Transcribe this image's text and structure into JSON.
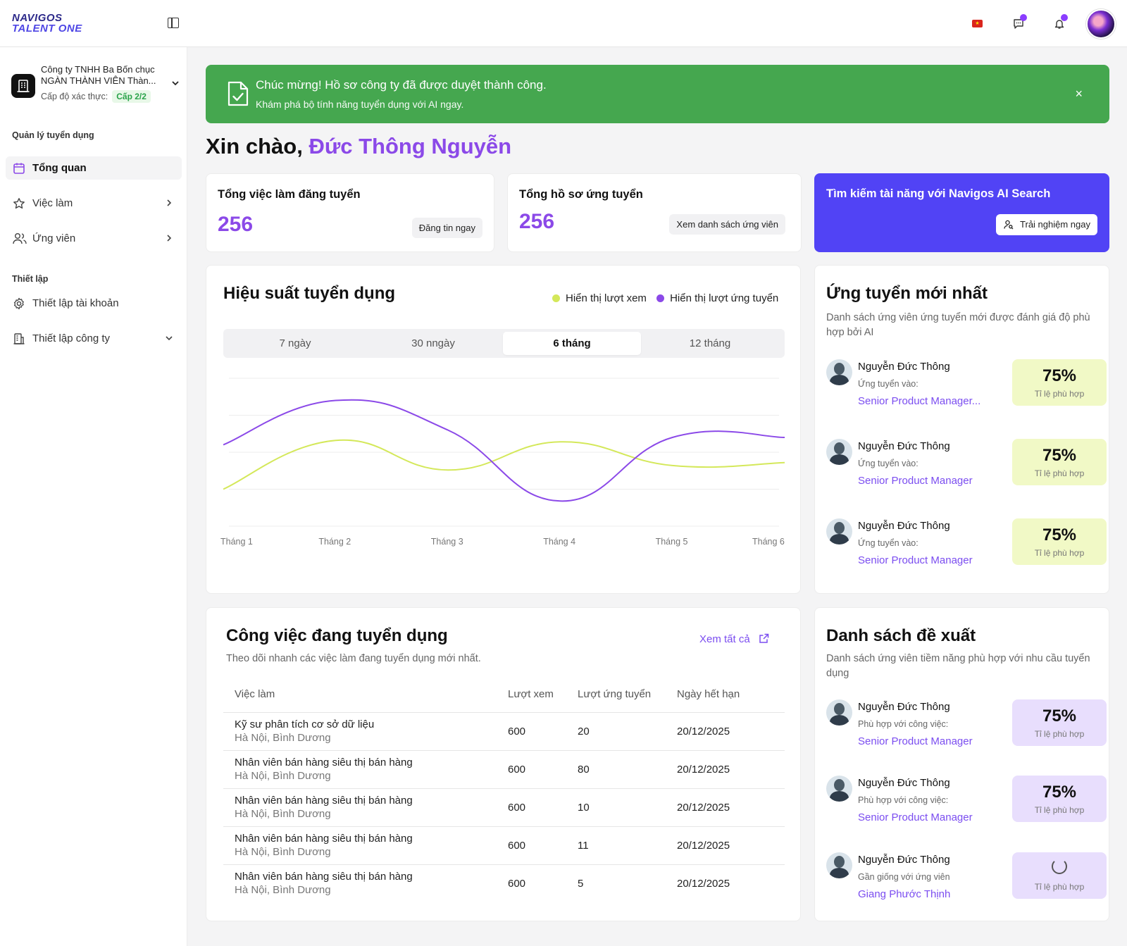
{
  "brand": {
    "line1": "NAVIGOS",
    "line2": "TALENT ONE"
  },
  "topbar": {
    "flag": "★",
    "messages_icon": "chat-icon",
    "notifications_icon": "bell-icon"
  },
  "company": {
    "name": "Công ty TNHH Ba Bốn chục NGÀN THÀNH VIÊN Thàn...",
    "level_label": "Cấp độ xác thực:",
    "level_value": "Cấp 2/2"
  },
  "sidebar": {
    "section1": "Quản lý tuyển dụng",
    "items": [
      {
        "label": "Tổng quan",
        "icon": "calendar-icon"
      },
      {
        "label": "Việc làm",
        "icon": "star-icon"
      },
      {
        "label": "Ứng viên",
        "icon": "users-icon"
      }
    ],
    "section2": "Thiết lập",
    "settings": [
      {
        "label": "Thiết lập tài khoản",
        "icon": "gear-icon"
      },
      {
        "label": "Thiết lập công ty",
        "icon": "building-icon"
      }
    ]
  },
  "alert": {
    "title": "Chúc mừng! Hồ sơ công ty đã được duyệt thành công.",
    "subtitle": "Khám phá bộ tính năng tuyển dụng với AI ngay.",
    "close": "×",
    "color": "#45a74f"
  },
  "greeting": {
    "prefix": "Xin chào,",
    "name": "Đức Thông Nguyễn"
  },
  "stats": {
    "jobs": {
      "title": "Tổng việc làm đăng tuyển",
      "value": "256",
      "button": "Đăng tin ngay"
    },
    "applications": {
      "title": "Tổng hồ sơ ứng tuyển",
      "value": "256",
      "button": "Xem danh sách ứng viên"
    }
  },
  "ai_search": {
    "title": "Tìm kiếm tài năng với Navigos AI Search",
    "button": "Trải nghiệm ngay",
    "color": "#5143f5"
  },
  "performance": {
    "title": "Hiệu suất tuyển dụng",
    "legend_views": "Hiển thị lượt xem",
    "legend_applies": "Hiển thị lượt ứng tuyển",
    "tabs": [
      "7 ngày",
      "30 nngày",
      "6 tháng",
      "12 tháng"
    ],
    "active_tab": "6 tháng"
  },
  "chart_data": {
    "type": "line",
    "categories": [
      "Tháng 1",
      "Tháng 2",
      "Tháng 3",
      "Tháng 4",
      "Tháng 5",
      "Tháng 6"
    ],
    "series": [
      {
        "name": "Hiển thị lượt xem",
        "color": "#d4e85a",
        "values": [
          25,
          58,
          38,
          57,
          41,
          43
        ]
      },
      {
        "name": "Hiển thị lượt ứng tuyển",
        "color": "#8b49e8",
        "values": [
          55,
          85,
          65,
          17,
          60,
          60
        ]
      }
    ],
    "ylim": [
      0,
      100
    ],
    "grid": true
  },
  "recent": {
    "title": "Ứng tuyển mới nhất",
    "subtitle": "Danh sách ứng viên ứng tuyển mới  được đánh giá độ phù hợp bởi AI",
    "items": [
      {
        "name": "Nguyễn Đức Thông",
        "label": "Ứng tuyển vào:",
        "job": "Senior Product Manager...",
        "score": "75%",
        "score_label": "Tỉ lệ phù hợp"
      },
      {
        "name": "Nguyễn Đức Thông",
        "label": "Ứng tuyển vào:",
        "job": "Senior Product Manager",
        "score": "75%",
        "score_label": "Tỉ lệ phù hợp"
      },
      {
        "name": "Nguyễn Đức Thông",
        "label": "Ứng tuyển vào:",
        "job": "Senior Product Manager",
        "score": "75%",
        "score_label": "Tỉ lệ phù hợp"
      }
    ]
  },
  "jobs": {
    "title": "Công việc đang tuyển dụng",
    "subtitle": "Theo dõi nhanh các việc làm đang tuyển dụng mới nhất.",
    "see_all": "Xem tất cả",
    "columns": [
      "Việc làm",
      "Lượt xem",
      "Lượt ứng tuyển",
      "Ngày hết hạn"
    ],
    "rows": [
      {
        "title": "Kỹ sư phân tích cơ sở dữ liệu",
        "location": "Hà Nội, Bình Dương",
        "views": "600",
        "applies": "20",
        "deadline": "20/12/2025"
      },
      {
        "title": "Nhân viên bán hàng siêu thị bán hàng",
        "location": "Hà Nội, Bình Dương",
        "views": "600",
        "applies": "80",
        "deadline": "20/12/2025"
      },
      {
        "title": "Nhân viên bán hàng siêu thị bán hàng",
        "location": "Hà Nội, Bình Dương",
        "views": "600",
        "applies": "10",
        "deadline": "20/12/2025"
      },
      {
        "title": "Nhân viên bán hàng siêu thị bán hàng",
        "location": "Hà Nội, Bình Dương",
        "views": "600",
        "applies": "11",
        "deadline": "20/12/2025"
      },
      {
        "title": "Nhân viên bán hàng siêu thị bán hàng",
        "location": "Hà Nội, Bình Dương",
        "views": "600",
        "applies": "5",
        "deadline": "20/12/2025"
      }
    ]
  },
  "suggest": {
    "title": "Danh sách đề xuất",
    "subtitle": "Danh sách ứng viên tiềm năng phù hợp với nhu cầu tuyển dụng",
    "items": [
      {
        "name": "Nguyễn Đức Thông",
        "label": "Phù hợp với công việc:",
        "job": "Senior Product Manager",
        "score": "75%",
        "score_label": "Tỉ lệ phù hợp"
      },
      {
        "name": "Nguyễn Đức Thông",
        "label": "Phù hợp với công việc:",
        "job": "Senior Product Manager",
        "score": "75%",
        "score_label": "Tỉ lệ phù hợp"
      },
      {
        "name": "Nguyễn Đức Thông",
        "label": "Gần giống với ứng viên",
        "job": "Giang Phước Thịnh",
        "score_label": "Tỉ lệ phù hợp"
      }
    ]
  }
}
